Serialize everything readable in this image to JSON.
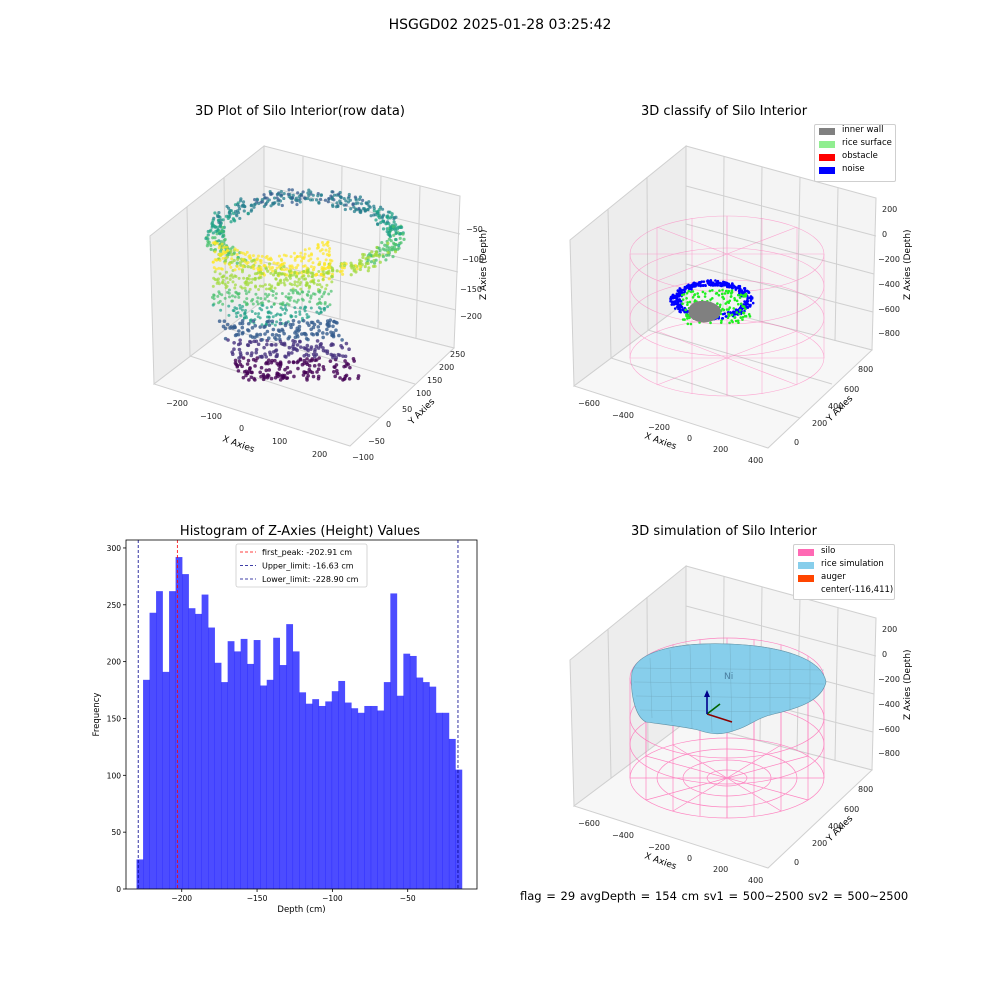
{
  "suptitle": "HSGGD02 2025-01-28 03:25:42",
  "panels": {
    "raw": {
      "title": "3D Plot of Silo Interior(row data)",
      "x_label": "X Axies",
      "y_label": "Y Axies",
      "z_label": "Z Axies (Depth)",
      "x_ticks": [
        "−200",
        "−100",
        "0",
        "100",
        "200"
      ],
      "y_ticks": [
        "−100",
        "−50",
        "0",
        "50",
        "100",
        "150",
        "200",
        "250"
      ],
      "z_ticks": [
        "−50",
        "−100",
        "−150",
        "−200"
      ]
    },
    "classify": {
      "title": "3D classify of Silo Interior",
      "x_label": "X Axies",
      "y_label": "Y Axies",
      "z_label": "Z Axies (Depth)",
      "x_ticks": [
        "−600",
        "−400",
        "−200",
        "0",
        "200",
        "400"
      ],
      "y_ticks": [
        "0",
        "200",
        "400",
        "600",
        "800"
      ],
      "z_ticks": [
        "200",
        "0",
        "−200",
        "−400",
        "−600",
        "−800"
      ],
      "legend": [
        {
          "label": "inner wall",
          "color": "#808080"
        },
        {
          "label": "rice surface",
          "color": "#90ee90"
        },
        {
          "label": "obstacle",
          "color": "#ff0000"
        },
        {
          "label": "noise",
          "color": "#0000ff"
        }
      ]
    },
    "simulation": {
      "title": "3D simulation of Silo Interior",
      "x_label": "X Axies",
      "y_label": "Y Axies",
      "z_label": "Z Axies (Depth)",
      "x_ticks": [
        "−600",
        "−400",
        "−200",
        "0",
        "200",
        "400"
      ],
      "y_ticks": [
        "0",
        "200",
        "400",
        "600",
        "800"
      ],
      "z_ticks": [
        "200",
        "0",
        "−200",
        "−400",
        "−600",
        "−800"
      ],
      "legend": [
        {
          "label": "silo",
          "color": "#ff69b4"
        },
        {
          "label": "rice simulation",
          "color": "#87ceeb"
        },
        {
          "label": "auger",
          "color": "#ff4500"
        },
        {
          "label": "center(-116,411)",
          "color": ""
        }
      ]
    }
  },
  "chart_data": [
    {
      "type": "bar",
      "title": "Histogram of Z-Axies (Height) Values",
      "xlabel": "Depth (cm)",
      "ylabel": "Frequency",
      "xlim": [
        -237,
        -4
      ],
      "ylim": [
        0,
        307
      ],
      "x_ticks": [
        -200,
        -150,
        -100,
        -50
      ],
      "x_tick_labels": [
        "−200",
        "−150",
        "−100",
        "−50"
      ],
      "y_ticks": [
        0,
        50,
        100,
        150,
        200,
        250,
        300
      ],
      "bar_color": "#0000ff",
      "bin_start": -230.0,
      "bin_width": 4.32,
      "values": [
        26,
        184,
        243,
        262,
        191,
        262,
        292,
        277,
        247,
        242,
        259,
        230,
        199,
        182,
        218,
        209,
        220,
        198,
        219,
        179,
        184,
        221,
        197,
        233,
        209,
        173,
        163,
        167,
        161,
        165,
        174,
        183,
        164,
        159,
        155,
        161,
        161,
        157,
        182,
        260,
        170,
        207,
        205,
        186,
        182,
        178,
        155,
        155,
        132,
        105
      ],
      "reference_lines": [
        {
          "label": "first_peak: -202.91 cm",
          "value": -202.91,
          "color": "#ff0000"
        },
        {
          "label": "Upper_limit: -16.63 cm",
          "value": -16.63,
          "color": "#00008b"
        },
        {
          "label": "Lower_limit: -228.90 cm",
          "value": -228.9,
          "color": "#00008b"
        }
      ],
      "legend_position": "upper center"
    }
  ],
  "footer": "flag = 29   avgDepth = 154 cm   sv1 = 500~2500   sv2 = 500~2500"
}
